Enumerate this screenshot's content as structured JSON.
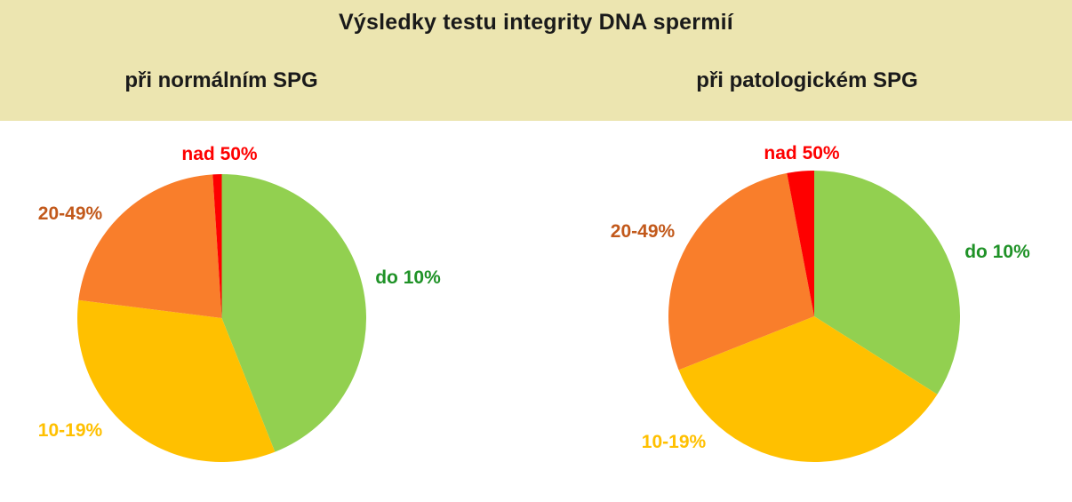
{
  "header": {
    "title": "Výsledky testu integrity DNA spermií",
    "subtitle_left": "při normálním SPG",
    "subtitle_right": "při patologickém SPG"
  },
  "colors": {
    "header_bg": "#ece5b0",
    "title_text": "#1a1a1a",
    "slice_green": "#92d050",
    "slice_yellow": "#ffc000",
    "slice_orange": "#f97e2b",
    "slice_red": "#fe0000",
    "label_green": "#1f9227",
    "label_yellow": "#ffc000",
    "label_brown": "#c2591b",
    "label_red": "#fe0000"
  },
  "chart_data": [
    {
      "type": "pie",
      "title": "při normálním SPG",
      "start_angle_deg": 0,
      "direction": "clockwise",
      "categories": [
        "do 10%",
        "10-19%",
        "20-49%",
        "nad 50%"
      ],
      "values": [
        44,
        33,
        22,
        1
      ],
      "slice_colors": [
        "#92d050",
        "#ffc000",
        "#f97e2b",
        "#fe0000"
      ],
      "label_colors": [
        "#1f9227",
        "#ffc000",
        "#c2591b",
        "#fe0000"
      ],
      "legend_position": "around-pie"
    },
    {
      "type": "pie",
      "title": "při patologickém SPG",
      "start_angle_deg": 0,
      "direction": "clockwise",
      "categories": [
        "do 10%",
        "10-19%",
        "20-49%",
        "nad 50%"
      ],
      "values": [
        34,
        35,
        28,
        3
      ],
      "slice_colors": [
        "#92d050",
        "#ffc000",
        "#f97e2b",
        "#fe0000"
      ],
      "label_colors": [
        "#1f9227",
        "#ffc000",
        "#c2591b",
        "#fe0000"
      ],
      "legend_position": "around-pie"
    }
  ]
}
